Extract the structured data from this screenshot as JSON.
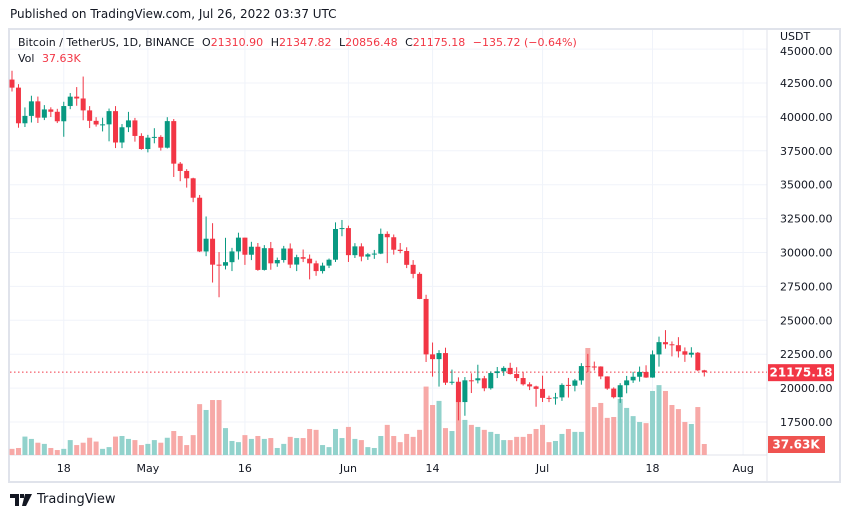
{
  "published": "Published on TradingView.com, Jul 26, 2022 03:37 UTC",
  "legend": {
    "symbol": "Bitcoin / TetherUS, 1D, BINANCE",
    "o_label": "O",
    "o": "21310.90",
    "h_label": "H",
    "h": "21347.82",
    "l_label": "L",
    "l": "20856.48",
    "c_label": "C",
    "c": "21175.18",
    "change": "−135.72 (−0.64%)",
    "vol_label": "Vol",
    "vol": "37.63K"
  },
  "footer": {
    "brand": "TradingView",
    "logo_icon": "tradingview-logo-icon"
  },
  "colors": {
    "up": "#089981",
    "down": "#f23645",
    "vol_up": "#92d2cc",
    "vol_down": "#f7a9a7",
    "grid": "#f0f3fa"
  },
  "chart_data": {
    "type": "candlestick",
    "currency_label": "USDT",
    "y_ticks": [
      "45000.00",
      "42500.00",
      "40000.00",
      "37500.00",
      "35000.00",
      "32500.00",
      "30000.00",
      "27500.00",
      "25000.00",
      "22500.00",
      "20000.00",
      "17500.00"
    ],
    "x_ticks": [
      {
        "label": "18",
        "date": "2022-04-18"
      },
      {
        "label": "May",
        "date": "2022-05-01"
      },
      {
        "label": "16",
        "date": "2022-05-16"
      },
      {
        "label": "Jun",
        "date": "2022-06-01"
      },
      {
        "label": "14",
        "date": "2022-06-14"
      },
      {
        "label": "Jul",
        "date": "2022-07-01"
      },
      {
        "label": "18",
        "date": "2022-07-18"
      },
      {
        "label": "Aug",
        "date": "2022-08-01"
      }
    ],
    "last_price": "21175.18",
    "last_volume": "37.63K",
    "grid": true,
    "columns": [
      "date",
      "open",
      "high",
      "low",
      "close",
      "volume_k"
    ],
    "candles": [
      [
        "2022-04-10",
        42753,
        43400,
        41869,
        42158,
        21
      ],
      [
        "2022-04-11",
        42158,
        42415,
        39200,
        39530,
        24
      ],
      [
        "2022-04-12",
        39530,
        40700,
        39254,
        40074,
        63
      ],
      [
        "2022-04-13",
        40074,
        41561,
        39588,
        41147,
        55
      ],
      [
        "2022-04-14",
        41147,
        41500,
        39551,
        39942,
        42
      ],
      [
        "2022-04-15",
        39942,
        40870,
        39766,
        40551,
        38
      ],
      [
        "2022-04-16",
        40551,
        40709,
        39991,
        40378,
        24
      ],
      [
        "2022-04-17",
        40378,
        40595,
        39546,
        39678,
        17
      ],
      [
        "2022-04-18",
        39678,
        41116,
        38536,
        40801,
        21
      ],
      [
        "2022-04-19",
        40801,
        41760,
        40571,
        41493,
        51
      ],
      [
        "2022-04-20",
        41493,
        42199,
        40820,
        41358,
        34
      ],
      [
        "2022-04-21",
        41358,
        42976,
        39751,
        40480,
        42
      ],
      [
        "2022-04-22",
        40480,
        40795,
        39177,
        39709,
        59
      ],
      [
        "2022-04-23",
        39709,
        39980,
        39285,
        39441,
        46
      ],
      [
        "2022-04-24",
        39441,
        39940,
        38929,
        39450,
        21
      ],
      [
        "2022-04-25",
        39450,
        40616,
        38200,
        40426,
        27
      ],
      [
        "2022-04-26",
        40426,
        40797,
        37702,
        38112,
        63
      ],
      [
        "2022-04-27",
        38112,
        39474,
        37697,
        39235,
        65
      ],
      [
        "2022-04-28",
        39235,
        40372,
        38881,
        39742,
        55
      ],
      [
        "2022-04-29",
        39742,
        39925,
        38175,
        38596,
        51
      ],
      [
        "2022-04-30",
        38596,
        38795,
        37578,
        37630,
        34
      ],
      [
        "2022-05-01",
        37630,
        38675,
        37386,
        38468,
        38
      ],
      [
        "2022-05-02",
        38468,
        39167,
        38052,
        38525,
        51
      ],
      [
        "2022-05-03",
        38525,
        38651,
        37517,
        37729,
        42
      ],
      [
        "2022-05-04",
        37729,
        39980,
        37671,
        39690,
        59
      ],
      [
        "2022-05-05",
        39690,
        39845,
        35571,
        36552,
        82
      ],
      [
        "2022-05-06",
        36552,
        36675,
        35258,
        36013,
        65
      ],
      [
        "2022-05-07",
        36013,
        36146,
        34785,
        35472,
        34
      ],
      [
        "2022-05-08",
        35472,
        35514,
        33713,
        34039,
        68
      ],
      [
        "2022-05-09",
        34039,
        34243,
        30033,
        30076,
        174
      ],
      [
        "2022-05-10",
        30076,
        32658,
        29730,
        31017,
        154
      ],
      [
        "2022-05-11",
        31017,
        32162,
        27785,
        29103,
        188
      ],
      [
        "2022-05-12",
        29103,
        30033,
        26700,
        29029,
        188
      ],
      [
        "2022-05-13",
        29029,
        31083,
        28751,
        29287,
        92
      ],
      [
        "2022-05-14",
        29287,
        30343,
        28630,
        30079,
        48
      ],
      [
        "2022-05-15",
        30079,
        31460,
        29480,
        31096,
        44
      ],
      [
        "2022-05-16",
        31096,
        31100,
        29087,
        29835,
        68
      ],
      [
        "2022-05-17",
        29835,
        30788,
        29440,
        30425,
        55
      ],
      [
        "2022-05-18",
        30425,
        30700,
        28654,
        28715,
        65
      ],
      [
        "2022-05-19",
        28715,
        30545,
        28670,
        30319,
        55
      ],
      [
        "2022-05-20",
        30319,
        30777,
        28730,
        29201,
        58
      ],
      [
        "2022-05-21",
        29201,
        29625,
        28947,
        29445,
        24
      ],
      [
        "2022-05-22",
        29445,
        30487,
        29255,
        30293,
        38
      ],
      [
        "2022-05-23",
        30293,
        30670,
        28852,
        29109,
        62
      ],
      [
        "2022-05-24",
        29109,
        29835,
        28630,
        29655,
        58
      ],
      [
        "2022-05-25",
        29655,
        30223,
        29294,
        29542,
        58
      ],
      [
        "2022-05-26",
        29542,
        29850,
        28019,
        29201,
        89
      ],
      [
        "2022-05-27",
        29201,
        29397,
        28282,
        28630,
        86
      ],
      [
        "2022-05-28",
        28630,
        29250,
        28450,
        29032,
        34
      ],
      [
        "2022-05-29",
        29032,
        29556,
        28852,
        29468,
        27
      ],
      [
        "2022-05-30",
        29468,
        32222,
        29300,
        31734,
        89
      ],
      [
        "2022-05-31",
        31734,
        32399,
        31200,
        31801,
        58
      ],
      [
        "2022-06-01",
        31801,
        31982,
        29301,
        29805,
        96
      ],
      [
        "2022-06-02",
        29805,
        30690,
        29594,
        30452,
        55
      ],
      [
        "2022-06-03",
        30452,
        30680,
        29350,
        29700,
        51
      ],
      [
        "2022-06-04",
        29700,
        29955,
        29454,
        29865,
        27
      ],
      [
        "2022-06-05",
        29865,
        30189,
        29531,
        29920,
        24
      ],
      [
        "2022-06-06",
        29920,
        31765,
        29880,
        31373,
        65
      ],
      [
        "2022-06-07",
        31373,
        31557,
        29218,
        31125,
        103
      ],
      [
        "2022-06-08",
        31125,
        31327,
        29843,
        30204,
        65
      ],
      [
        "2022-06-09",
        30204,
        30700,
        29944,
        30110,
        44
      ],
      [
        "2022-06-10",
        30110,
        30385,
        28850,
        29091,
        72
      ],
      [
        "2022-06-11",
        29091,
        29440,
        28099,
        28424,
        62
      ],
      [
        "2022-06-12",
        28424,
        28544,
        26560,
        26575,
        86
      ],
      [
        "2022-06-13",
        26575,
        26883,
        21925,
        22487,
        234
      ],
      [
        "2022-06-14",
        22487,
        23362,
        20846,
        22136,
        171
      ],
      [
        "2022-06-15",
        22136,
        22800,
        20111,
        22583,
        185
      ],
      [
        "2022-06-16",
        22583,
        22980,
        20232,
        20401,
        92
      ],
      [
        "2022-06-17",
        20401,
        21365,
        20246,
        20468,
        82
      ],
      [
        "2022-06-18",
        20468,
        20792,
        17622,
        18970,
        188
      ],
      [
        "2022-06-19",
        18970,
        20815,
        17960,
        20574,
        120
      ],
      [
        "2022-06-20",
        20574,
        21090,
        19637,
        20573,
        103
      ],
      [
        "2022-06-21",
        20573,
        21723,
        20348,
        20723,
        96
      ],
      [
        "2022-06-22",
        20723,
        20900,
        19770,
        19987,
        86
      ],
      [
        "2022-06-23",
        19987,
        21233,
        19890,
        21110,
        79
      ],
      [
        "2022-06-24",
        21110,
        21558,
        20740,
        21237,
        72
      ],
      [
        "2022-06-25",
        21237,
        21614,
        20906,
        21491,
        51
      ],
      [
        "2022-06-26",
        21491,
        21868,
        21000,
        21038,
        51
      ],
      [
        "2022-06-27",
        21038,
        21540,
        20510,
        20742,
        62
      ],
      [
        "2022-06-28",
        20742,
        21200,
        20188,
        20281,
        62
      ],
      [
        "2022-06-29",
        20281,
        20432,
        19854,
        20123,
        72
      ],
      [
        "2022-06-30",
        20123,
        20179,
        18626,
        19942,
        89
      ],
      [
        "2022-07-01",
        19942,
        20918,
        18975,
        19279,
        103
      ],
      [
        "2022-07-02",
        19279,
        19443,
        18966,
        19252,
        44
      ],
      [
        "2022-07-03",
        19252,
        19648,
        18781,
        19315,
        48
      ],
      [
        "2022-07-04",
        19315,
        20354,
        19055,
        20236,
        72
      ],
      [
        "2022-07-05",
        20236,
        20750,
        19304,
        20175,
        89
      ],
      [
        "2022-07-06",
        20175,
        20675,
        19762,
        20564,
        79
      ],
      [
        "2022-07-07",
        20564,
        21838,
        20251,
        21624,
        79
      ],
      [
        "2022-07-08",
        21624,
        22527,
        21189,
        21594,
        366
      ],
      [
        "2022-07-09",
        21594,
        21954,
        21300,
        21592,
        164
      ],
      [
        "2022-07-10",
        21592,
        21609,
        20655,
        20862,
        178
      ],
      [
        "2022-07-11",
        20862,
        20868,
        19875,
        19963,
        127
      ],
      [
        "2022-07-12",
        19963,
        20055,
        19240,
        19328,
        130
      ],
      [
        "2022-07-13",
        19328,
        20366,
        18910,
        20213,
        192
      ],
      [
        "2022-07-14",
        20213,
        20900,
        19616,
        20569,
        161
      ],
      [
        "2022-07-15",
        20569,
        21200,
        20384,
        20836,
        133
      ],
      [
        "2022-07-16",
        20836,
        21588,
        20478,
        21190,
        113
      ],
      [
        "2022-07-17",
        21190,
        21683,
        20755,
        20779,
        109
      ],
      [
        "2022-07-18",
        20779,
        22777,
        20762,
        22485,
        219
      ],
      [
        "2022-07-19",
        22485,
        23800,
        21582,
        23389,
        239
      ],
      [
        "2022-07-20",
        23389,
        24276,
        22906,
        23231,
        219
      ],
      [
        "2022-07-21",
        23231,
        23442,
        22341,
        23164,
        171
      ],
      [
        "2022-07-22",
        23164,
        23756,
        22257,
        22714,
        157
      ],
      [
        "2022-07-23",
        22714,
        23000,
        21934,
        22465,
        113
      ],
      [
        "2022-07-24",
        22465,
        23014,
        22257,
        22609,
        106
      ],
      [
        "2022-07-25",
        22609,
        22663,
        21250,
        21310,
        164
      ],
      [
        "2022-07-26",
        21310.9,
        21347.82,
        20856.48,
        21175.18,
        37.63
      ]
    ]
  }
}
